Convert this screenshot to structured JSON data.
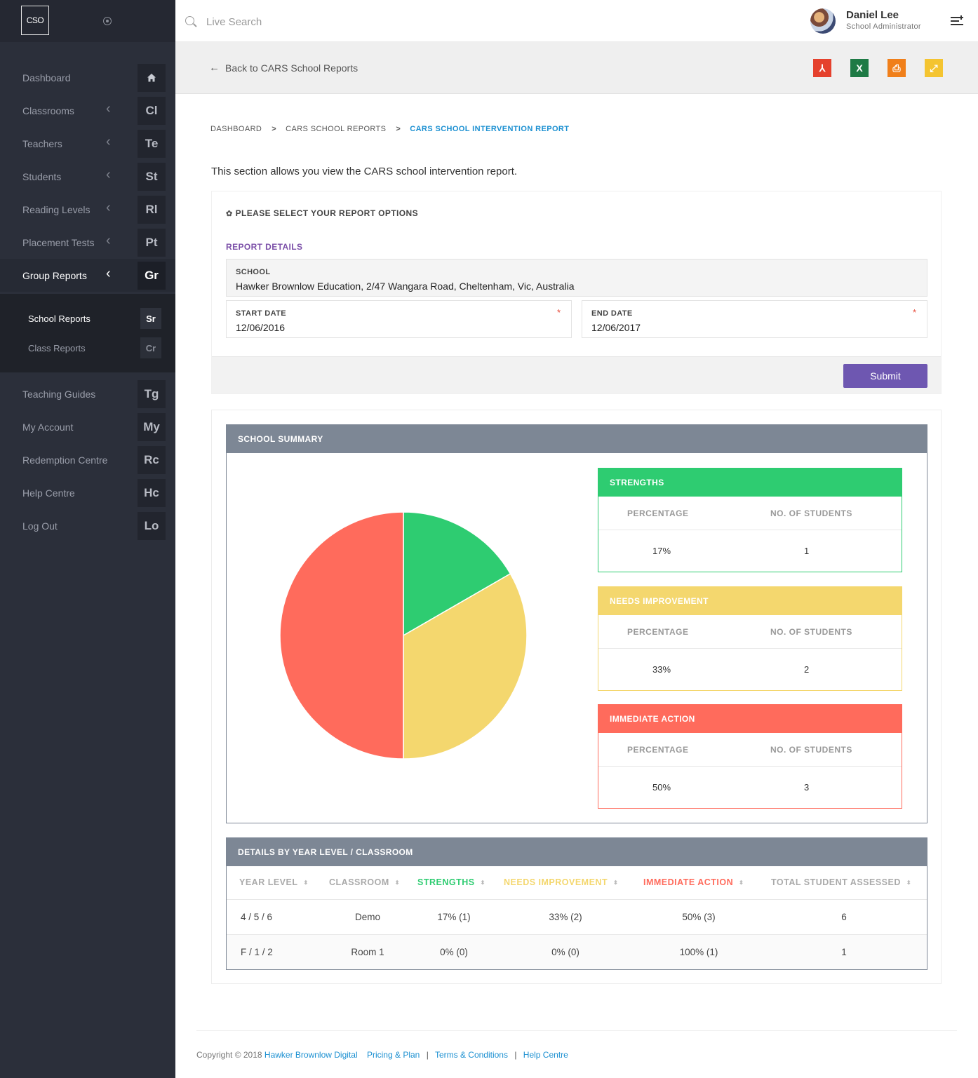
{
  "app": {
    "logo_text": "CSO"
  },
  "sidebar": {
    "items": [
      {
        "label": "Dashboard",
        "badge": "",
        "chevron": false,
        "active": false
      },
      {
        "label": "Classrooms",
        "badge": "Cl",
        "chevron": true,
        "active": false
      },
      {
        "label": "Teachers",
        "badge": "Te",
        "chevron": true,
        "active": false
      },
      {
        "label": "Students",
        "badge": "St",
        "chevron": true,
        "active": false
      },
      {
        "label": "Reading Levels",
        "badge": "Rl",
        "chevron": true,
        "active": false
      },
      {
        "label": "Placement Tests",
        "badge": "Pt",
        "chevron": true,
        "active": false
      },
      {
        "label": "Group Reports",
        "badge": "Gr",
        "chevron": true,
        "active": true
      },
      {
        "label": "Teaching Guides",
        "badge": "Tg",
        "chevron": false,
        "active": false
      },
      {
        "label": "My Account",
        "badge": "My",
        "chevron": false,
        "active": false
      },
      {
        "label": "Redemption Centre",
        "badge": "Rc",
        "chevron": false,
        "active": false
      },
      {
        "label": "Help Centre",
        "badge": "Hc",
        "chevron": false,
        "active": false
      },
      {
        "label": "Log Out",
        "badge": "Lo",
        "chevron": false,
        "active": false
      }
    ],
    "subitems": [
      {
        "label": "School Reports",
        "badge": "Sr",
        "active": true
      },
      {
        "label": "Class Reports",
        "badge": "Cr",
        "active": false
      }
    ],
    "dashboard_icon": "home-icon"
  },
  "header": {
    "search_placeholder": "Live Search",
    "user_name": "Daniel Lee",
    "user_role": "School Administrator"
  },
  "toolbar": {
    "back_label": "Back to CARS School Reports",
    "buttons": [
      {
        "name": "pdf-export-button",
        "icon": "pdf-icon",
        "color": "#e5412d",
        "glyph": "⅄"
      },
      {
        "name": "excel-export-button",
        "icon": "excel-icon",
        "color": "#1e7a45",
        "glyph": "X"
      },
      {
        "name": "print-button",
        "icon": "print-icon",
        "color": "#f07f1a",
        "glyph": "⎙"
      },
      {
        "name": "expand-button",
        "icon": "expand-icon",
        "color": "#f4c430",
        "glyph": "⤢"
      }
    ]
  },
  "breadcrumb": [
    "DASHBOARD",
    "CARS SCHOOL REPORTS",
    "CARS SCHOOL INTERVENTION REPORT"
  ],
  "intro_text": "This section allows you view the CARS school intervention report.",
  "options": {
    "title": "PLEASE SELECT YOUR REPORT OPTIONS",
    "section_title": "REPORT DETAILS",
    "school_label": "SCHOOL",
    "school_value": "Hawker Brownlow Education, 2/47 Wangara Road, Cheltenham, Vic, Australia",
    "start_label": "START DATE",
    "start_value": "12/06/2016",
    "end_label": "END DATE",
    "end_value": "12/06/2017",
    "required_mark": "*",
    "submit_label": "Submit"
  },
  "summary": {
    "title": "SCHOOL SUMMARY",
    "col_percentage": "PERCENTAGE",
    "col_students": "NO. OF STUDENTS",
    "cards": [
      {
        "title": "STRENGTHS",
        "percentage": "17%",
        "students": "1",
        "color": "#2ecc71"
      },
      {
        "title": "NEEDS IMPROVEMENT",
        "percentage": "33%",
        "students": "2",
        "color": "#f4d76e"
      },
      {
        "title": "IMMEDIATE ACTION",
        "percentage": "50%",
        "students": "3",
        "color": "#ff6b5c"
      }
    ]
  },
  "chart_data": {
    "type": "pie",
    "categories": [
      "Strengths",
      "Needs Improvement",
      "Immediate Action"
    ],
    "values": [
      1,
      2,
      3
    ],
    "colors": [
      "#2ecc71",
      "#f4d76e",
      "#ff6b5c"
    ]
  },
  "details": {
    "title": "DETAILS BY YEAR LEVEL / CLASSROOM",
    "columns": [
      {
        "label": "YEAR LEVEL",
        "color": "#aaaaaa"
      },
      {
        "label": "CLASSROOM",
        "color": "#aaaaaa"
      },
      {
        "label": "STRENGTHS",
        "color": "#2ecc71"
      },
      {
        "label": "NEEDS IMPROVEMENT",
        "color": "#f4d76e"
      },
      {
        "label": "IMMEDIATE ACTION",
        "color": "#ff6b5c"
      },
      {
        "label": "TOTAL STUDENT ASSESSED",
        "color": "#aaaaaa"
      }
    ],
    "rows": [
      [
        "4 / 5 / 6",
        "Demo",
        "17% (1)",
        "33% (2)",
        "50% (3)",
        "6"
      ],
      [
        "F / 1 / 2",
        "Room 1",
        "0% (0)",
        "0% (0)",
        "100% (1)",
        "1"
      ]
    ]
  },
  "footer": {
    "copyright": "Copyright © 2018",
    "company": "Hawker Brownlow Digital",
    "links": [
      "Pricing & Plan",
      "Terms & Conditions",
      "Help Centre"
    ],
    "separator": "|"
  }
}
